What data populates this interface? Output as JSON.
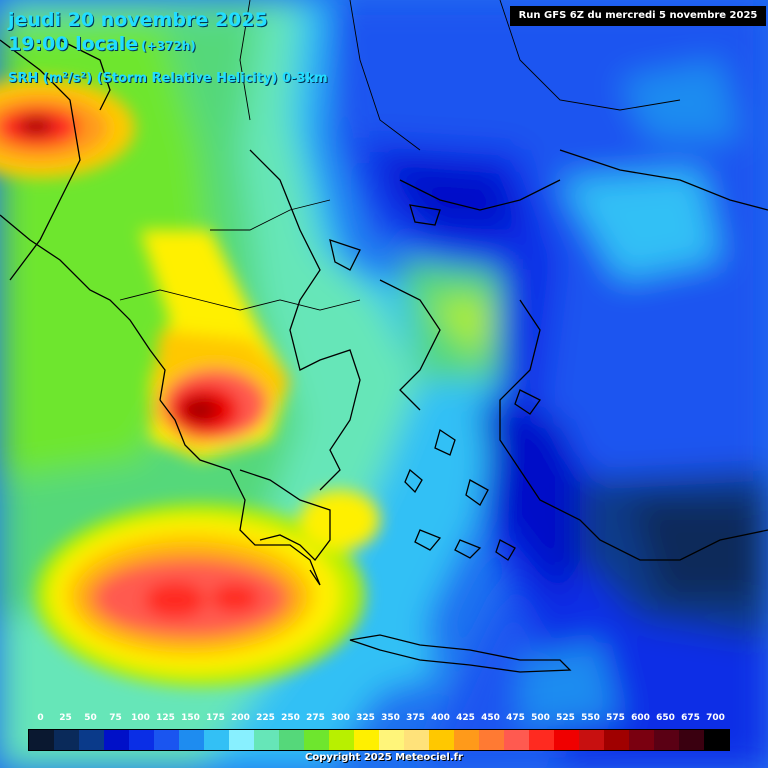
{
  "header": {
    "date_line": "jeudi 20 novembre 2025",
    "time_line": "19:00 locale",
    "lead_time": "(+372h)",
    "field_line": "SRH (m²/s²) (Storm Relative Helicity) 0-3km",
    "run_info": "Run GFS 6Z du mercredi 5 novembre 2025"
  },
  "legend": {
    "ticks": [
      "0",
      "25",
      "50",
      "75",
      "100",
      "125",
      "150",
      "175",
      "200",
      "225",
      "250",
      "275",
      "300",
      "325",
      "350",
      "375",
      "400",
      "425",
      "450",
      "475",
      "500",
      "525",
      "550",
      "575",
      "600",
      "650",
      "675",
      "700"
    ],
    "colors": [
      "#0a1830",
      "#0a2a5a",
      "#0a3a8a",
      "#0010c8",
      "#0a2ee6",
      "#1a55f0",
      "#1e8cf0",
      "#33c0f5",
      "#88f0ff",
      "#66e6b8",
      "#55d87a",
      "#6ee62e",
      "#b8f000",
      "#fff000",
      "#fff57a",
      "#ffe27a",
      "#ffc800",
      "#ff9a1a",
      "#ff7a33",
      "#ff5a50",
      "#ff2a20",
      "#f00000",
      "#c81010",
      "#a00000",
      "#7a0010",
      "#5a0014",
      "#3a0010",
      "#000000"
    ]
  },
  "footer": {
    "copyright": "Copyright 2025 Meteociel.fr"
  }
}
